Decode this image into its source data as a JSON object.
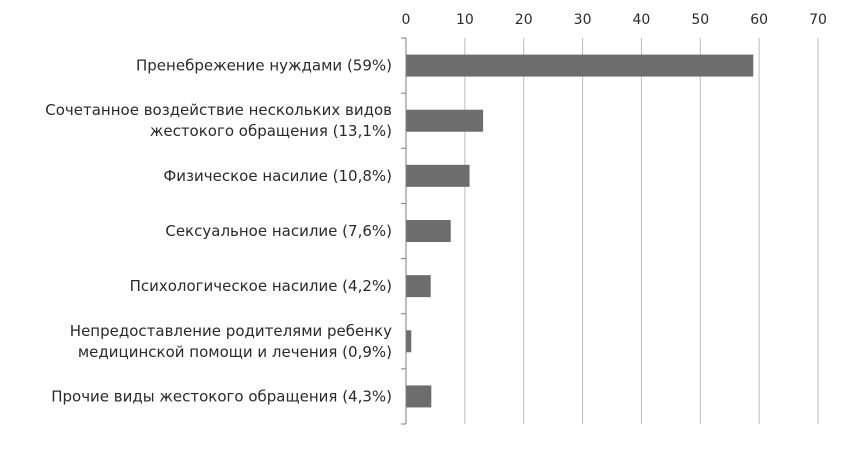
{
  "chart_data": {
    "type": "bar",
    "orientation": "horizontal",
    "x_axis_position": "top",
    "grid": true,
    "xlim": [
      0,
      70
    ],
    "x_ticks": [
      0,
      10,
      20,
      30,
      40,
      50,
      60,
      70
    ],
    "categories": [
      [
        "Пренебрежение нуждами (59%)"
      ],
      [
        "Сочетанное воздействие нескольких видов",
        "жестокого обращения (13,1%)"
      ],
      [
        "Физическое насилие (10,8%)"
      ],
      [
        "Сексуальное насилие (7,6%)"
      ],
      [
        "Психологическое насилие (4,2%)"
      ],
      [
        "Непредоставление родителями ребенку",
        "медицинской помощи и лечения (0,9%)"
      ],
      [
        "Прочие виды жестокого обращения (4,3%)"
      ]
    ],
    "values": [
      59,
      13.1,
      10.8,
      7.6,
      4.2,
      0.9,
      4.3
    ],
    "colors": {
      "bar": "#6d6d6d",
      "grid": "#bdbdbd",
      "axis": "#7f7f7f"
    }
  }
}
